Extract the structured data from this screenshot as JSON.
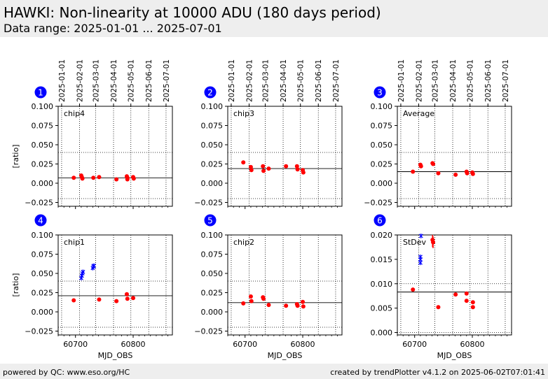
{
  "header": {
    "title": "HAWKI: Non-linearity at 10000 ADU (180 days period)",
    "subtitle": "Data range: 2025-01-01 ... 2025-07-01"
  },
  "footer": {
    "left": "powered by QC: www.eso.org/HC",
    "right": "created by trendPlotter v4.1.2 on 2025-06-02T07:01:41"
  },
  "colors": {
    "data": "#ff0000",
    "stdev_series": "#0000ff",
    "badge": "#0000ff"
  },
  "chart_data": [
    {
      "type": "scatter",
      "panel": "1",
      "label": "chip4",
      "ylabel": "[ratio]",
      "xlabel": "",
      "xlim": [
        60670,
        60868
      ],
      "ylim": [
        -0.03,
        0.1
      ],
      "yticks": [
        -0.025,
        0.0,
        0.025,
        0.05,
        0.075,
        0.1
      ],
      "yticklabels": [
        "−0.025",
        "0.000",
        "0.025",
        "0.050",
        "0.075",
        "0.100"
      ],
      "xticks": [
        60700,
        60800
      ],
      "xticklabels": [],
      "show_date_axis": true,
      "ref_line": 0.007,
      "dotted_lines": [
        0.04,
        -0.02
      ],
      "series": [
        {
          "marker": "dot",
          "color": "red",
          "errorbars": false,
          "x": [
            60697,
            60710,
            60711,
            60712,
            60731,
            60741,
            60771,
            60789,
            60790,
            60790,
            60800,
            60801
          ],
          "y": [
            0.007,
            0.01,
            0.008,
            0.006,
            0.007,
            0.008,
            0.005,
            0.009,
            0.007,
            0.005,
            0.008,
            0.006
          ]
        }
      ]
    },
    {
      "type": "scatter",
      "panel": "2",
      "label": "chip3",
      "ylabel": "",
      "xlabel": "",
      "xlim": [
        60670,
        60868
      ],
      "ylim": [
        -0.03,
        0.1
      ],
      "yticks": [
        -0.025,
        0.0,
        0.025,
        0.05,
        0.075,
        0.1
      ],
      "yticklabels": [
        "−0.025",
        "0.000",
        "0.025",
        "0.050",
        "0.075",
        "0.100"
      ],
      "xticks": [
        60700,
        60800
      ],
      "xticklabels": [],
      "show_date_axis": true,
      "ref_line": 0.019,
      "dotted_lines": [
        0.04,
        -0.02
      ],
      "series": [
        {
          "marker": "dot",
          "color": "red",
          "errorbars": false,
          "x": [
            60697,
            60710,
            60711,
            60731,
            60732,
            60741,
            60771,
            60790,
            60791,
            60800,
            60801
          ],
          "y": [
            0.027,
            0.021,
            0.017,
            0.022,
            0.016,
            0.019,
            0.022,
            0.022,
            0.018,
            0.017,
            0.014
          ]
        }
      ]
    },
    {
      "type": "scatter",
      "panel": "3",
      "label": "Average",
      "ylabel": "",
      "xlabel": "",
      "xlim": [
        60670,
        60868
      ],
      "ylim": [
        -0.03,
        0.1
      ],
      "yticks": [
        -0.025,
        0.0,
        0.025,
        0.05,
        0.075,
        0.1
      ],
      "yticklabels": [
        "−0.025",
        "0.000",
        "0.025",
        "0.050",
        "0.075",
        "0.100"
      ],
      "xticks": [
        60700,
        60800
      ],
      "xticklabels": [],
      "show_date_axis": true,
      "ref_line": 0.015,
      "dotted_lines": [
        0.04,
        -0.02
      ],
      "series": [
        {
          "marker": "dot",
          "color": "red",
          "errorbars": false,
          "x": [
            60697,
            60710,
            60711,
            60731,
            60732,
            60741,
            60771,
            60790,
            60791,
            60800,
            60801
          ],
          "y": [
            0.015,
            0.024,
            0.022,
            0.026,
            0.025,
            0.013,
            0.011,
            0.015,
            0.013,
            0.014,
            0.012
          ]
        }
      ]
    },
    {
      "type": "scatter",
      "panel": "4",
      "label": "chip1",
      "ylabel": "[ratio]",
      "xlabel": "MJD_OBS",
      "xlim": [
        60670,
        60868
      ],
      "ylim": [
        -0.03,
        0.1
      ],
      "yticks": [
        -0.025,
        0.0,
        0.025,
        0.05,
        0.075,
        0.1
      ],
      "yticklabels": [
        "−0.025",
        "0.000",
        "0.025",
        "0.050",
        "0.075",
        "0.100"
      ],
      "xticks": [
        60700,
        60800
      ],
      "xticklabels": [
        "60700",
        "60800"
      ],
      "show_date_axis": false,
      "ref_line": 0.021,
      "dotted_lines": [
        0.04,
        -0.02
      ],
      "series": [
        {
          "marker": "x",
          "color": "blue",
          "errorbars": false,
          "x": [
            60710,
            60711,
            60712,
            60713,
            60730,
            60731,
            60732
          ],
          "y": [
            0.044,
            0.047,
            0.05,
            0.052,
            0.057,
            0.059,
            0.06
          ]
        },
        {
          "marker": "dot",
          "color": "red",
          "errorbars": false,
          "x": [
            60697,
            60741,
            60771,
            60789,
            60790,
            60800
          ],
          "y": [
            0.015,
            0.016,
            0.014,
            0.023,
            0.017,
            0.018
          ]
        }
      ]
    },
    {
      "type": "scatter",
      "panel": "5",
      "label": "chip2",
      "ylabel": "",
      "xlabel": "MJD_OBS",
      "xlim": [
        60670,
        60868
      ],
      "ylim": [
        -0.03,
        0.1
      ],
      "yticks": [
        -0.025,
        0.0,
        0.025,
        0.05,
        0.075,
        0.1
      ],
      "yticklabels": [
        "−0.025",
        "0.000",
        "0.025",
        "0.050",
        "0.075",
        "0.100"
      ],
      "xticks": [
        60700,
        60800
      ],
      "xticklabels": [
        "60700",
        "60800"
      ],
      "show_date_axis": false,
      "ref_line": 0.012,
      "dotted_lines": [
        0.04,
        -0.02
      ],
      "series": [
        {
          "marker": "dot",
          "color": "red",
          "errorbars": false,
          "x": [
            60697,
            60710,
            60711,
            60731,
            60732,
            60741,
            60771,
            60790,
            60791,
            60800,
            60801
          ],
          "y": [
            0.011,
            0.02,
            0.014,
            0.019,
            0.017,
            0.009,
            0.008,
            0.01,
            0.008,
            0.013,
            0.007
          ]
        }
      ]
    },
    {
      "type": "scatter",
      "panel": "6",
      "label": "StDev",
      "ylabel": "",
      "xlabel": "MJD_OBS",
      "xlim": [
        60670,
        60868
      ],
      "ylim": [
        -0.0005,
        0.02
      ],
      "yticks": [
        0.0,
        0.005,
        0.01,
        0.015,
        0.02
      ],
      "yticklabels": [
        "0.000",
        "0.005",
        "0.010",
        "0.015",
        "0.020"
      ],
      "xticks": [
        60700,
        60800
      ],
      "xticklabels": [
        "60700",
        "60800"
      ],
      "show_date_axis": false,
      "ref_line": 0.0083,
      "dotted_lines": [
        0.01,
        0.0
      ],
      "series": [
        {
          "marker": "x",
          "color": "blue",
          "errorbars": false,
          "x": [
            60710,
            60710,
            60710,
            60711
          ],
          "y": [
            0.0143,
            0.015,
            0.0155,
            0.0198
          ]
        },
        {
          "marker": "dot",
          "color": "red",
          "errorbars": true,
          "x": [
            60731,
            60732
          ],
          "y": [
            0.019,
            0.0185
          ],
          "yerr": [
            0.0015,
            0.0012
          ]
        },
        {
          "marker": "dot",
          "color": "red",
          "errorbars": false,
          "x": [
            60697,
            60741,
            60771,
            60790,
            60790,
            60801,
            60801
          ],
          "y": [
            0.0088,
            0.0052,
            0.0078,
            0.008,
            0.0065,
            0.0062,
            0.0052
          ]
        }
      ]
    }
  ],
  "date_axis": {
    "labels": [
      "2025-01-01",
      "2025-02-01",
      "2025-03-01",
      "2025-04-01",
      "2025-05-01",
      "2025-06-01",
      "2025-07-01"
    ],
    "mjd": [
      60676,
      60707,
      60735,
      60766,
      60796,
      60827,
      60857
    ]
  }
}
